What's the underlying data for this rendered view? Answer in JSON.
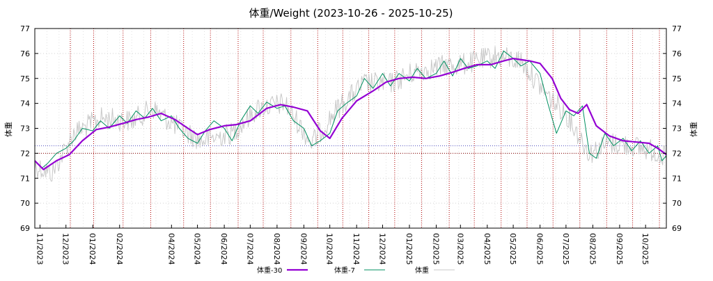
{
  "chart_data": {
    "type": "line",
    "title": "体重/Weight (2023-10-26 - 2025-10-25)",
    "ylabel": "体重",
    "y2label": "体重",
    "ylim": [
      69,
      77
    ],
    "xlim": [
      "2023-10-26",
      "2025-10-25"
    ],
    "yticks": [
      69,
      70,
      71,
      72,
      73,
      74,
      75,
      76,
      77
    ],
    "grid": true,
    "month_ticks": [
      "11/2023",
      "12/2023",
      "01/2024",
      "02/2024",
      "04/2024",
      "05/2024",
      "06/2024",
      "07/2024",
      "08/2024",
      "09/2024",
      "10/2024",
      "11/2024",
      "12/2024",
      "01/2025",
      "02/2025",
      "03/2025",
      "04/2025",
      "05/2025",
      "06/2025",
      "07/2025",
      "08/2025",
      "09/2025",
      "10/2025"
    ],
    "month_tick_dates": [
      "2023-11-01",
      "2023-12-01",
      "2024-01-01",
      "2024-02-01",
      "2024-04-01",
      "2024-05-01",
      "2024-06-01",
      "2024-07-01",
      "2024-08-01",
      "2024-09-01",
      "2024-10-01",
      "2024-11-01",
      "2024-12-01",
      "2025-01-01",
      "2025-02-01",
      "2025-03-01",
      "2025-04-01",
      "2025-05-01",
      "2025-06-01",
      "2025-07-01",
      "2025-08-01",
      "2025-09-01",
      "2025-10-01"
    ],
    "red_vlines": [
      "2023-12-06",
      "2024-01-02",
      "2024-02-05",
      "2024-03-08",
      "2024-04-15",
      "2024-05-16",
      "2024-06-17",
      "2024-07-16",
      "2024-08-17",
      "2024-09-17",
      "2024-10-16",
      "2024-11-15",
      "2024-12-15",
      "2025-01-15",
      "2025-02-16",
      "2025-03-17",
      "2025-04-17",
      "2025-05-17",
      "2025-06-16",
      "2025-07-17",
      "2025-08-17",
      "2025-09-16",
      "2025-10-17"
    ],
    "hlines": [
      {
        "y": 72.0,
        "color": "#8b0000"
      },
      {
        "y": 72.3,
        "color": "#5050c0"
      }
    ],
    "legend_position": "bottom",
    "series": [
      {
        "name": "体重-30",
        "color": "#9400d3",
        "points": [
          [
            "2023-10-26",
            71.7
          ],
          [
            "2023-11-05",
            71.35
          ],
          [
            "2023-11-20",
            71.7
          ],
          [
            "2023-12-05",
            71.95
          ],
          [
            "2023-12-20",
            72.5
          ],
          [
            "2024-01-05",
            72.95
          ],
          [
            "2024-01-20",
            73.05
          ],
          [
            "2024-02-05",
            73.2
          ],
          [
            "2024-02-20",
            73.35
          ],
          [
            "2024-03-05",
            73.45
          ],
          [
            "2024-03-20",
            73.6
          ],
          [
            "2024-04-05",
            73.35
          ],
          [
            "2024-04-20",
            73.0
          ],
          [
            "2024-05-01",
            72.75
          ],
          [
            "2024-05-15",
            72.95
          ],
          [
            "2024-06-01",
            73.1
          ],
          [
            "2024-06-15",
            73.15
          ],
          [
            "2024-07-01",
            73.3
          ],
          [
            "2024-07-20",
            73.8
          ],
          [
            "2024-08-05",
            73.95
          ],
          [
            "2024-08-20",
            73.85
          ],
          [
            "2024-09-05",
            73.7
          ],
          [
            "2024-09-20",
            72.9
          ],
          [
            "2024-10-01",
            72.6
          ],
          [
            "2024-10-15",
            73.4
          ],
          [
            "2024-11-01",
            74.1
          ],
          [
            "2024-11-20",
            74.5
          ],
          [
            "2024-12-05",
            74.85
          ],
          [
            "2024-12-20",
            75.0
          ],
          [
            "2025-01-05",
            75.05
          ],
          [
            "2025-01-20",
            75.0
          ],
          [
            "2025-02-05",
            75.1
          ],
          [
            "2025-02-20",
            75.25
          ],
          [
            "2025-03-05",
            75.4
          ],
          [
            "2025-03-20",
            75.55
          ],
          [
            "2025-04-05",
            75.55
          ],
          [
            "2025-04-20",
            75.7
          ],
          [
            "2025-05-01",
            75.8
          ],
          [
            "2025-05-20",
            75.7
          ],
          [
            "2025-06-01",
            75.6
          ],
          [
            "2025-06-15",
            75.0
          ],
          [
            "2025-06-25",
            74.2
          ],
          [
            "2025-07-05",
            73.75
          ],
          [
            "2025-07-15",
            73.6
          ],
          [
            "2025-07-25",
            73.95
          ],
          [
            "2025-08-05",
            73.1
          ],
          [
            "2025-08-20",
            72.7
          ],
          [
            "2025-09-05",
            72.5
          ],
          [
            "2025-09-20",
            72.45
          ],
          [
            "2025-10-05",
            72.4
          ],
          [
            "2025-10-15",
            72.2
          ],
          [
            "2025-10-25",
            71.95
          ]
        ]
      },
      {
        "name": "体重-7",
        "color": "#009060",
        "points": [
          [
            "2023-10-26",
            71.7
          ],
          [
            "2023-11-03",
            71.4
          ],
          [
            "2023-11-10",
            71.6
          ],
          [
            "2023-11-20",
            72.0
          ],
          [
            "2023-12-01",
            72.2
          ],
          [
            "2023-12-10",
            72.5
          ],
          [
            "2023-12-20",
            73.0
          ],
          [
            "2024-01-01",
            72.9
          ],
          [
            "2024-01-10",
            73.3
          ],
          [
            "2024-01-20",
            73.0
          ],
          [
            "2024-02-01",
            73.5
          ],
          [
            "2024-02-10",
            73.2
          ],
          [
            "2024-02-20",
            73.7
          ],
          [
            "2024-03-01",
            73.4
          ],
          [
            "2024-03-10",
            73.8
          ],
          [
            "2024-03-20",
            73.3
          ],
          [
            "2024-04-01",
            73.5
          ],
          [
            "2024-04-10",
            73.0
          ],
          [
            "2024-04-20",
            72.6
          ],
          [
            "2024-05-01",
            72.4
          ],
          [
            "2024-05-10",
            72.9
          ],
          [
            "2024-05-20",
            73.3
          ],
          [
            "2024-06-01",
            73.0
          ],
          [
            "2024-06-10",
            72.5
          ],
          [
            "2024-06-20",
            73.3
          ],
          [
            "2024-07-01",
            73.9
          ],
          [
            "2024-07-10",
            73.6
          ],
          [
            "2024-07-20",
            74.05
          ],
          [
            "2024-08-01",
            73.8
          ],
          [
            "2024-08-10",
            73.9
          ],
          [
            "2024-08-20",
            73.3
          ],
          [
            "2024-09-01",
            73.0
          ],
          [
            "2024-09-10",
            72.3
          ],
          [
            "2024-09-20",
            72.5
          ],
          [
            "2024-10-01",
            72.8
          ],
          [
            "2024-10-10",
            73.7
          ],
          [
            "2024-10-20",
            74.0
          ],
          [
            "2024-11-01",
            74.3
          ],
          [
            "2024-11-10",
            75.0
          ],
          [
            "2024-11-20",
            74.6
          ],
          [
            "2024-12-01",
            75.2
          ],
          [
            "2024-12-10",
            74.7
          ],
          [
            "2024-12-20",
            75.2
          ],
          [
            "2025-01-01",
            74.9
          ],
          [
            "2025-01-10",
            75.4
          ],
          [
            "2025-01-20",
            75.0
          ],
          [
            "2025-02-01",
            75.2
          ],
          [
            "2025-02-10",
            75.7
          ],
          [
            "2025-02-20",
            75.1
          ],
          [
            "2025-03-01",
            75.8
          ],
          [
            "2025-03-10",
            75.4
          ],
          [
            "2025-03-20",
            75.5
          ],
          [
            "2025-04-01",
            75.7
          ],
          [
            "2025-04-10",
            75.4
          ],
          [
            "2025-04-20",
            76.1
          ],
          [
            "2025-05-01",
            75.8
          ],
          [
            "2025-05-10",
            75.5
          ],
          [
            "2025-05-20",
            75.7
          ],
          [
            "2025-06-01",
            75.2
          ],
          [
            "2025-06-10",
            74.0
          ],
          [
            "2025-06-20",
            72.8
          ],
          [
            "2025-07-01",
            73.7
          ],
          [
            "2025-07-10",
            73.5
          ],
          [
            "2025-07-20",
            73.9
          ],
          [
            "2025-07-28",
            72.0
          ],
          [
            "2025-08-05",
            71.8
          ],
          [
            "2025-08-15",
            72.8
          ],
          [
            "2025-08-25",
            72.3
          ],
          [
            "2025-09-05",
            72.6
          ],
          [
            "2025-09-15",
            72.1
          ],
          [
            "2025-09-25",
            72.5
          ],
          [
            "2025-10-05",
            72.0
          ],
          [
            "2025-10-15",
            72.3
          ],
          [
            "2025-10-20",
            71.7
          ],
          [
            "2025-10-25",
            71.9
          ]
        ]
      },
      {
        "name": "体重",
        "color": "#c8c8c8",
        "noise": true,
        "points": [
          [
            "2023-10-26",
            71.5
          ],
          [
            "2023-11-15",
            71.2
          ],
          [
            "2023-12-10",
            72.8
          ],
          [
            "2024-01-10",
            73.4
          ],
          [
            "2024-02-15",
            73.3
          ],
          [
            "2024-03-10",
            73.8
          ],
          [
            "2024-04-10",
            73.0
          ],
          [
            "2024-05-05",
            72.5
          ],
          [
            "2024-06-10",
            72.8
          ],
          [
            "2024-07-10",
            73.8
          ],
          [
            "2024-08-10",
            74.0
          ],
          [
            "2024-09-10",
            72.4
          ],
          [
            "2024-10-10",
            73.8
          ],
          [
            "2024-11-10",
            74.8
          ],
          [
            "2024-12-10",
            74.8
          ],
          [
            "2025-01-10",
            75.3
          ],
          [
            "2025-02-10",
            75.5
          ],
          [
            "2025-03-10",
            75.6
          ],
          [
            "2025-04-10",
            75.9
          ],
          [
            "2025-05-10",
            75.7
          ],
          [
            "2025-06-10",
            74.3
          ],
          [
            "2025-07-01",
            73.6
          ],
          [
            "2025-07-28",
            72.0
          ],
          [
            "2025-08-20",
            72.4
          ],
          [
            "2025-09-15",
            72.3
          ],
          [
            "2025-10-10",
            72.1
          ],
          [
            "2025-10-25",
            71.8
          ]
        ]
      }
    ]
  }
}
